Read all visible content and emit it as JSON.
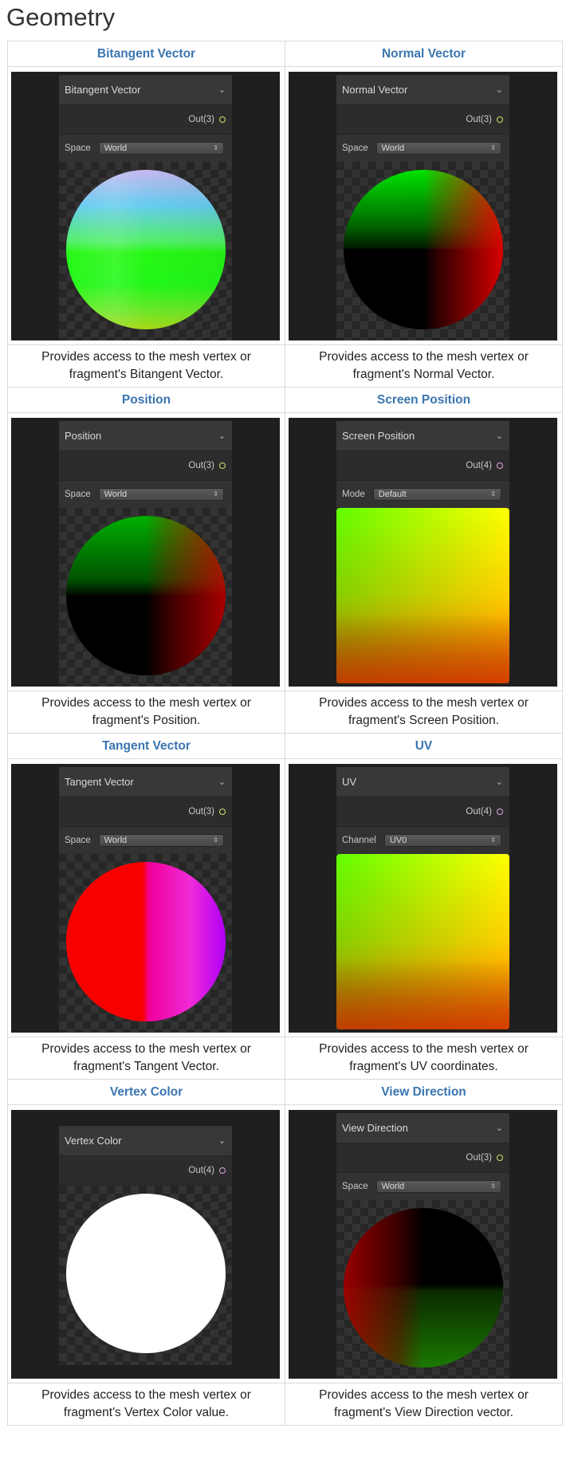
{
  "page": {
    "title": "Geometry"
  },
  "nodes": [
    {
      "id": "bitangent",
      "header": "Bitangent Vector",
      "node_name": "Bitangent Vector",
      "output": "Out(3)",
      "option_label": "Space",
      "option_value": "World",
      "description_line1": "Provides access to the mesh vertex or",
      "description_line2": "fragment's Bitangent Vector."
    },
    {
      "id": "normal",
      "header": "Normal Vector",
      "node_name": "Normal Vector",
      "output": "Out(3)",
      "option_label": "Space",
      "option_value": "World",
      "description_line1": "Provides access to the mesh vertex or",
      "description_line2": "fragment's Normal Vector."
    },
    {
      "id": "position",
      "header": "Position",
      "node_name": "Position",
      "output": "Out(3)",
      "option_label": "Space",
      "option_value": "World",
      "description_line1": "Provides access to the mesh vertex or",
      "description_line2": "fragment's Position."
    },
    {
      "id": "screen-position",
      "header": "Screen Position",
      "node_name": "Screen Position",
      "output": "Out(4)",
      "option_label": "Mode",
      "option_value": "Default",
      "description_line1": "Provides access to the mesh vertex or",
      "description_line2": "fragment's Screen Position."
    },
    {
      "id": "tangent",
      "header": "Tangent Vector",
      "node_name": "Tangent Vector",
      "output": "Out(3)",
      "option_label": "Space",
      "option_value": "World",
      "description_line1": "Provides access to the mesh vertex or",
      "description_line2": "fragment's Tangent Vector."
    },
    {
      "id": "uv",
      "header": "UV",
      "node_name": "UV",
      "output": "Out(4)",
      "option_label": "Channel",
      "option_value": "UV0",
      "description_line1": "Provides access to the mesh vertex or",
      "description_line2": "fragment's UV coordinates."
    },
    {
      "id": "vertex-color",
      "header": "Vertex Color",
      "node_name": "Vertex Color",
      "output": "Out(4)",
      "option_label": "",
      "option_value": "",
      "description_line1": "Provides access to the mesh vertex or",
      "description_line2": "fragment's Vertex Color value."
    },
    {
      "id": "view-direction",
      "header": "View Direction",
      "node_name": "View Direction",
      "output": "Out(3)",
      "option_label": "Space",
      "option_value": "World",
      "description_line1": "Provides access to the mesh vertex or",
      "description_line2": "fragment's View Direction vector."
    }
  ],
  "colors": {
    "link": "#3a75b0",
    "border": "#dadada",
    "screenshot_bg": "#1f1f1f",
    "port_vec3": "#d8df6a",
    "port_vec4": "#e0a6df"
  }
}
